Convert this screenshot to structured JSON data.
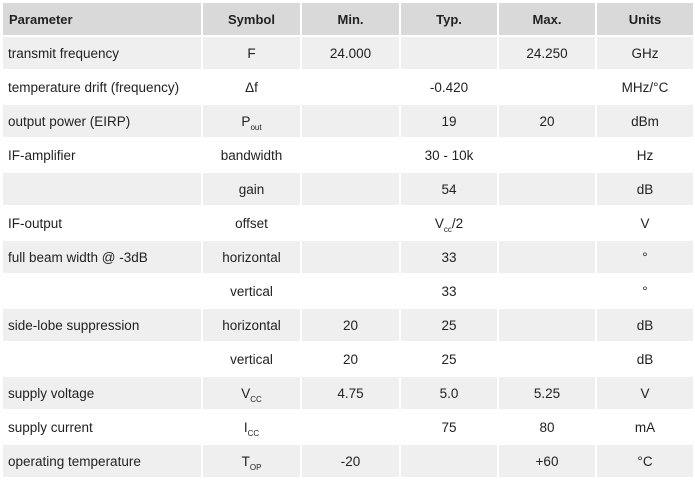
{
  "headers": {
    "parameter": "Parameter",
    "symbol": "Symbol",
    "min": "Min.",
    "typ": "Typ.",
    "max": "Max.",
    "units": "Units"
  },
  "rows": [
    {
      "parameter": "transmit frequency",
      "symbol": "F",
      "min": "24.000",
      "typ": "",
      "max": "24.250",
      "units": "GHz"
    },
    {
      "parameter": "temperature drift (frequency)",
      "symbol": "Δf",
      "min": "",
      "typ": "-0.420",
      "max": "",
      "units": "MHz/°C"
    },
    {
      "parameter": "output power (EIRP)",
      "symbol": "P",
      "symbol_sub": "out",
      "min": "",
      "typ": "19",
      "max": "20",
      "units": "dBm"
    },
    {
      "parameter": "IF-amplifier",
      "symbol": "bandwidth",
      "min": "",
      "typ": "30 - 10k",
      "max": "",
      "units": "Hz"
    },
    {
      "parameter": "",
      "symbol": "gain",
      "min": "",
      "typ": "54",
      "max": "",
      "units": "dB"
    },
    {
      "parameter": "IF-output",
      "symbol": "offset",
      "min": "",
      "typ": "V",
      "typ_sub": "cc",
      "typ_suffix": "/2",
      "max": "",
      "units": "V"
    },
    {
      "parameter": "full beam width @ -3dB",
      "symbol": "horizontal",
      "min": "",
      "typ": "33",
      "max": "",
      "units": "°"
    },
    {
      "parameter": "",
      "symbol": "vertical",
      "min": "",
      "typ": "33",
      "max": "",
      "units": "°"
    },
    {
      "parameter": "side-lobe suppression",
      "symbol": "horizontal",
      "min": "20",
      "typ": "25",
      "max": "",
      "units": "dB"
    },
    {
      "parameter": "",
      "symbol": "vertical",
      "min": "20",
      "typ": "25",
      "max": "",
      "units": "dB"
    },
    {
      "parameter": "supply voltage",
      "symbol": "V",
      "symbol_sub": "CC",
      "min": "4.75",
      "typ": "5.0",
      "max": "5.25",
      "units": "V"
    },
    {
      "parameter": "supply current",
      "symbol": "I",
      "symbol_sub": "CC",
      "min": "",
      "typ": "75",
      "max": "80",
      "units": "mA"
    },
    {
      "parameter": "operating temperature",
      "symbol": "T",
      "symbol_sub": "OP",
      "min": "-20",
      "typ": "",
      "max": "+60",
      "units": "°C"
    }
  ]
}
